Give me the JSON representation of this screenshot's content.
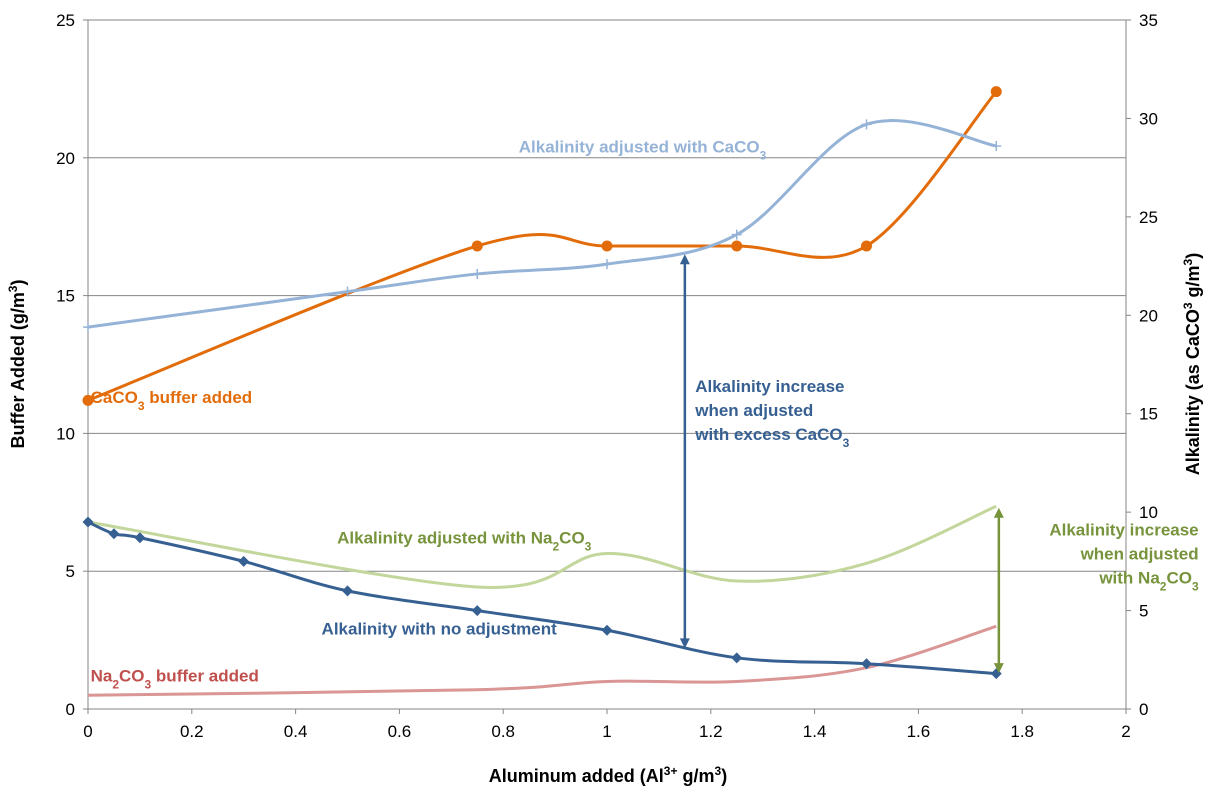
{
  "chart_data": {
    "type": "line",
    "xlabel": "Aluminum added (Al³⁺ g/m³)",
    "ylabel": "Buffer Added (g/m³)",
    "y2label": "Alkalinity (as CaCO³ g/m³)",
    "xlim": [
      0,
      2
    ],
    "ylim": [
      0,
      25
    ],
    "y2lim": [
      0,
      35
    ],
    "x_ticks": [
      "0",
      "0.2",
      "0.4",
      "0.6",
      "0.8",
      "1",
      "1.2",
      "1.4",
      "1.6",
      "1.8",
      "2"
    ],
    "y_ticks": [
      "0",
      "5",
      "10",
      "15",
      "20",
      "25"
    ],
    "y2_ticks": [
      "0",
      "5",
      "10",
      "15",
      "20",
      "25",
      "30",
      "35"
    ],
    "grid": "horizontal",
    "series": [
      {
        "name": "CaCO₃ buffer added",
        "axis": "left",
        "color": "#E36C0A",
        "marker": "circle",
        "points": [
          [
            0,
            11.2
          ],
          [
            0.75,
            16.8
          ],
          [
            1.0,
            16.8
          ],
          [
            1.25,
            16.8
          ],
          [
            1.5,
            16.8
          ],
          [
            1.75,
            22.4
          ]
        ]
      },
      {
        "name": "Na₂CO₃ buffer added",
        "axis": "left",
        "color": "#D99694",
        "marker": "none",
        "points": [
          [
            0,
            0.5
          ],
          [
            0.75,
            0.7
          ],
          [
            1.0,
            1.0
          ],
          [
            1.25,
            1.0
          ],
          [
            1.5,
            1.5
          ],
          [
            1.75,
            3.0
          ]
        ]
      },
      {
        "name": "Alkalinity adjusted with CaCO₃",
        "axis": "right",
        "color": "#95B3D7",
        "marker": "plus",
        "points": [
          [
            0,
            19.4
          ],
          [
            0.5,
            21.2
          ],
          [
            0.75,
            22.1
          ],
          [
            1.0,
            22.6
          ],
          [
            1.25,
            24.1
          ],
          [
            1.5,
            29.7
          ],
          [
            1.75,
            28.6
          ]
        ]
      },
      {
        "name": "Alkalinity adjusted with Na₂CO₃",
        "axis": "right",
        "color": "#C3D69B",
        "marker": "none",
        "points": [
          [
            0,
            9.5
          ],
          [
            0.75,
            6.2
          ],
          [
            1.0,
            7.9
          ],
          [
            1.25,
            6.5
          ],
          [
            1.5,
            7.4
          ],
          [
            1.75,
            10.3
          ]
        ]
      },
      {
        "name": "Alkalinity with no adjustment",
        "axis": "right",
        "color": "#376092",
        "marker": "diamond",
        "points": [
          [
            0,
            9.5
          ],
          [
            0.05,
            8.9
          ],
          [
            0.1,
            8.7
          ],
          [
            0.3,
            7.5
          ],
          [
            0.5,
            6.0
          ],
          [
            0.75,
            5.0
          ],
          [
            1.0,
            4.0
          ],
          [
            1.25,
            2.6
          ],
          [
            1.5,
            2.3
          ],
          [
            1.75,
            1.8
          ]
        ]
      }
    ],
    "annotations": [
      {
        "id": "caco3-buffer-label",
        "color": "#E36C0A",
        "lines": [
          [
            [
              "CaCO",
              ""
            ],
            [
              "3",
              "sub"
            ],
            [
              " buffer added",
              ""
            ]
          ]
        ],
        "anchor": "start",
        "at": [
          0.005,
          11.1
        ]
      },
      {
        "id": "na2co3-buffer-label",
        "color": "#C0504D",
        "lines": [
          [
            [
              "Na",
              ""
            ],
            [
              "2",
              "sub"
            ],
            [
              "CO",
              ""
            ],
            [
              "3",
              "sub"
            ],
            [
              " buffer added",
              ""
            ]
          ]
        ],
        "anchor": "start",
        "at": [
          0.005,
          1.0
        ]
      },
      {
        "id": "alk-caco3-label",
        "color": "#95B3D7",
        "lines": [
          [
            [
              "Alkalinity adjusted with CaCO",
              ""
            ],
            [
              "3",
              "sub"
            ]
          ]
        ],
        "anchor": "start",
        "at": [
          0.83,
          20.2
        ]
      },
      {
        "id": "alk-na2co3-label",
        "color": "#77933C",
        "lines": [
          [
            [
              "Alkalinity adjusted with Na",
              ""
            ],
            [
              "2",
              "sub"
            ],
            [
              "CO",
              ""
            ],
            [
              "3",
              "sub"
            ]
          ]
        ],
        "anchor": "start",
        "at": [
          0.48,
          6.0
        ]
      },
      {
        "id": "alk-none-label",
        "color": "#376092",
        "lines": [
          [
            [
              "Alkalinity with no adjustment",
              ""
            ]
          ]
        ],
        "anchor": "start",
        "at": [
          0.45,
          2.7
        ]
      },
      {
        "id": "caco3-increase-label",
        "color": "#376092",
        "lines": [
          [
            [
              "Alkalinity increase",
              ""
            ]
          ],
          [
            [
              "when adjusted",
              ""
            ]
          ],
          [
            [
              "with excess CaCO",
              ""
            ],
            [
              "3",
              "sub"
            ]
          ]
        ],
        "anchor": "start",
        "at": [
          1.17,
          11.5
        ]
      },
      {
        "id": "na2co3-increase-label",
        "color": "#77933C",
        "lines": [
          [
            [
              "Alkalinity increase",
              ""
            ]
          ],
          [
            [
              "when adjusted",
              ""
            ]
          ],
          [
            [
              "with Na",
              ""
            ],
            [
              "2",
              "sub"
            ],
            [
              "CO",
              ""
            ],
            [
              "3",
              "sub"
            ]
          ]
        ],
        "anchor": "end",
        "at": [
          2.14,
          6.3
        ]
      }
    ],
    "arrows": [
      {
        "id": "caco3-increase-arrow",
        "color": "#376092",
        "x": 1.15,
        "from": 2.2,
        "to": 16.5
      },
      {
        "id": "na2co3-increase-arrow",
        "color": "#77933C",
        "x": 1.755,
        "from": 1.3,
        "to": 7.3
      }
    ]
  }
}
